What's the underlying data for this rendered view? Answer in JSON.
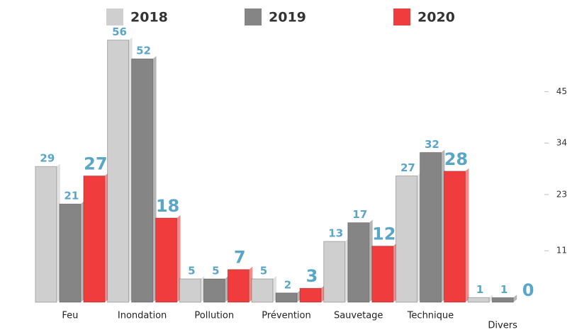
{
  "chart_data": {
    "type": "bar",
    "categories": [
      "Feu",
      "Inondation",
      "Pollution",
      "Prévention",
      "Sauvetage",
      "Technique",
      "Divers"
    ],
    "series": [
      {
        "name": "2018",
        "color": "#cfcfcf",
        "values": [
          29,
          56,
          5,
          5,
          13,
          27,
          1
        ]
      },
      {
        "name": "2019",
        "color": "#858585",
        "values": [
          21,
          52,
          5,
          2,
          17,
          32,
          1
        ]
      },
      {
        "name": "2020",
        "color": "#f03c3c",
        "values": [
          27,
          18,
          7,
          3,
          12,
          28,
          0
        ]
      }
    ],
    "ylim": [
      0,
      57
    ],
    "yticks": [
      11,
      23,
      34,
      45
    ]
  }
}
